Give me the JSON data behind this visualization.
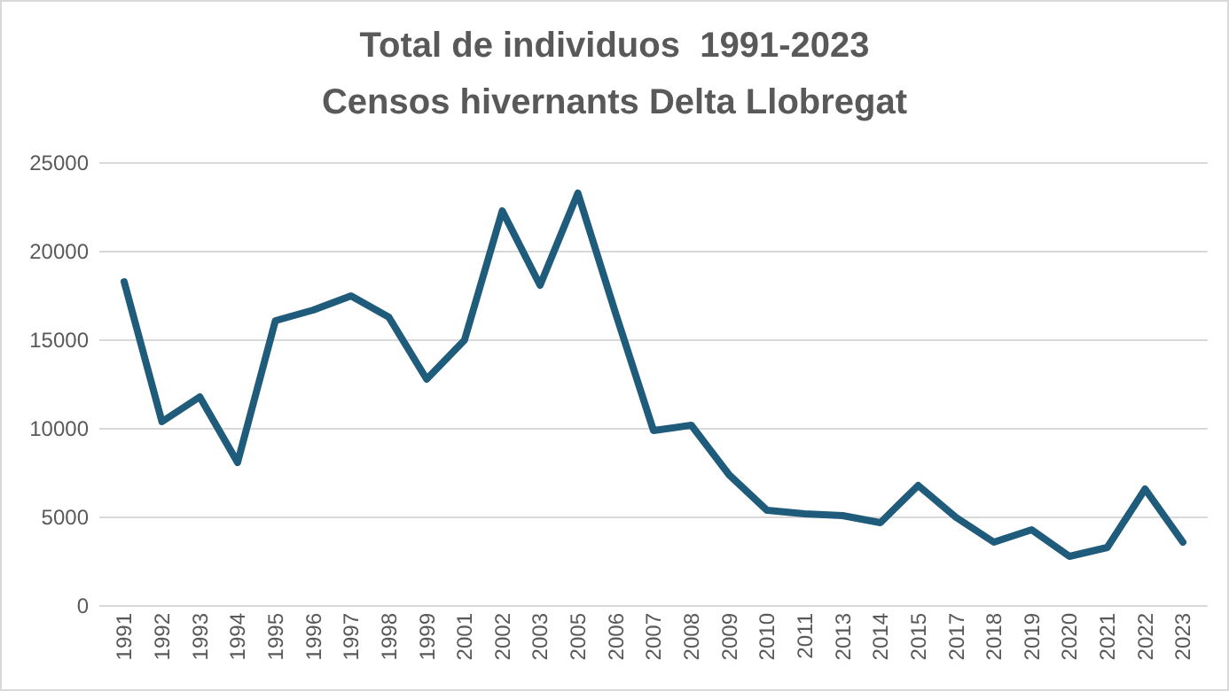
{
  "chart_data": {
    "type": "line",
    "title": "Total de individuos  1991-2023",
    "subtitle": "Censos hivernants Delta Llobregat",
    "categories": [
      "1991",
      "1992",
      "1993",
      "1994",
      "1995",
      "1996",
      "1997",
      "1998",
      "1999",
      "2001",
      "2002",
      "2003",
      "2005",
      "2006",
      "2007",
      "2008",
      "2009",
      "2010",
      "2011",
      "2013",
      "2014",
      "2015",
      "2017",
      "2018",
      "2019",
      "2020",
      "2021",
      "2022",
      "2023"
    ],
    "series": [
      {
        "color": "#1f5b7a",
        "values": [
          18300,
          10400,
          11800,
          8100,
          16100,
          16700,
          17500,
          16300,
          12800,
          15000,
          22300,
          18100,
          23300,
          16500,
          9900,
          10200,
          7400,
          5400,
          5200,
          5100,
          4700,
          6800,
          5000,
          3600,
          4300,
          2800,
          3300,
          6600,
          3600
        ]
      }
    ],
    "ylim": [
      0,
      25000
    ],
    "yticks": [
      0,
      5000,
      10000,
      15000,
      20000,
      25000
    ],
    "grid": "y",
    "marker": "none",
    "line_style": "solid"
  }
}
